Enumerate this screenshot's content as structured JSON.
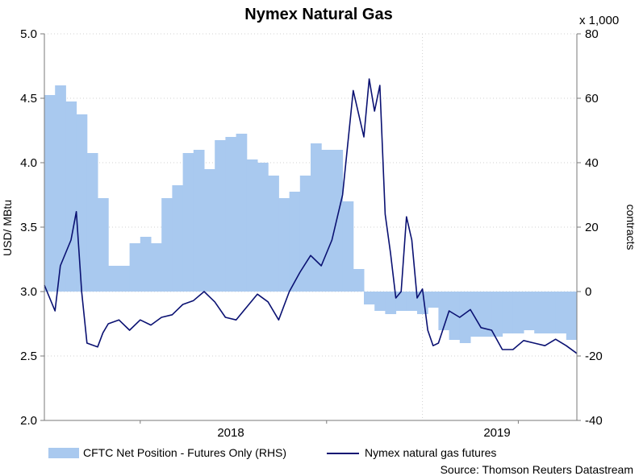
{
  "chart_data": {
    "type": "line",
    "title": "Nymex Natural Gas",
    "ylabel_left": "USD/ MBtu",
    "ylabel_right": "contracts",
    "right_scale_note": "x 1,000",
    "ylim_left": [
      2.0,
      5.0
    ],
    "ylim_right": [
      -40,
      80
    ],
    "yticks_left": [
      "5.0",
      "4.5",
      "4.0",
      "3.5",
      "3.0",
      "2.5",
      "2.0"
    ],
    "yticks_right": [
      "80",
      "60",
      "40",
      "20",
      "0",
      "-20",
      "-40"
    ],
    "xticks": [
      "2018",
      "2019"
    ],
    "grid": "dotted",
    "legend_position": "bottom",
    "source": "Source: Thomson Reuters Datastream",
    "colors": {
      "area": "#a9c9ef",
      "line": "#0a1172"
    },
    "series": [
      {
        "name": "CFTC Net Position - Futures Only (RHS)",
        "kind": "area",
        "axis": "right",
        "t": [
          0,
          0.02,
          0.04,
          0.06,
          0.08,
          0.1,
          0.12,
          0.14,
          0.16,
          0.18,
          0.2,
          0.22,
          0.24,
          0.26,
          0.28,
          0.3,
          0.32,
          0.34,
          0.36,
          0.38,
          0.4,
          0.42,
          0.44,
          0.46,
          0.48,
          0.5,
          0.52,
          0.54,
          0.56,
          0.58,
          0.6,
          0.62,
          0.64,
          0.66,
          0.68,
          0.7,
          0.72,
          0.74,
          0.76,
          0.78,
          0.8,
          0.82,
          0.84,
          0.86,
          0.88,
          0.9,
          0.92,
          0.94,
          0.96,
          0.98,
          1.0
        ],
        "values": [
          61,
          64,
          59,
          55,
          43,
          29,
          8,
          8,
          15,
          17,
          15,
          29,
          33,
          43,
          44,
          38,
          47,
          48,
          49,
          41,
          40,
          36,
          29,
          31,
          36,
          46,
          44,
          44,
          28,
          7,
          -4,
          -6,
          -7,
          -6,
          -6,
          -7,
          -5,
          -12,
          -15,
          -16,
          -14,
          -14,
          -14,
          -13,
          -13,
          -12,
          -13,
          -13,
          -13,
          -15,
          -20
        ]
      },
      {
        "name": "Nymex natural gas futures",
        "kind": "line",
        "axis": "left",
        "t": [
          0,
          0.02,
          0.03,
          0.05,
          0.06,
          0.07,
          0.08,
          0.1,
          0.11,
          0.12,
          0.14,
          0.16,
          0.18,
          0.2,
          0.22,
          0.24,
          0.26,
          0.28,
          0.3,
          0.32,
          0.34,
          0.36,
          0.38,
          0.4,
          0.42,
          0.44,
          0.46,
          0.48,
          0.5,
          0.52,
          0.54,
          0.56,
          0.58,
          0.6,
          0.61,
          0.62,
          0.63,
          0.64,
          0.65,
          0.66,
          0.67,
          0.68,
          0.69,
          0.7,
          0.71,
          0.72,
          0.73,
          0.74,
          0.76,
          0.78,
          0.8,
          0.82,
          0.84,
          0.86,
          0.88,
          0.9,
          0.92,
          0.94,
          0.96,
          0.98,
          1.0
        ],
        "values": [
          3.05,
          2.85,
          3.2,
          3.4,
          3.62,
          3.0,
          2.6,
          2.57,
          2.68,
          2.75,
          2.78,
          2.7,
          2.78,
          2.74,
          2.8,
          2.82,
          2.9,
          2.93,
          3.0,
          2.92,
          2.8,
          2.78,
          2.88,
          2.98,
          2.92,
          2.78,
          3.0,
          3.15,
          3.28,
          3.2,
          3.4,
          3.75,
          4.56,
          4.2,
          4.65,
          4.4,
          4.6,
          3.6,
          3.3,
          2.95,
          3.0,
          3.58,
          3.4,
          2.95,
          3.02,
          2.7,
          2.58,
          2.6,
          2.85,
          2.8,
          2.86,
          2.72,
          2.7,
          2.55,
          2.55,
          2.62,
          2.6,
          2.58,
          2.63,
          2.58,
          2.52
        ]
      }
    ]
  }
}
